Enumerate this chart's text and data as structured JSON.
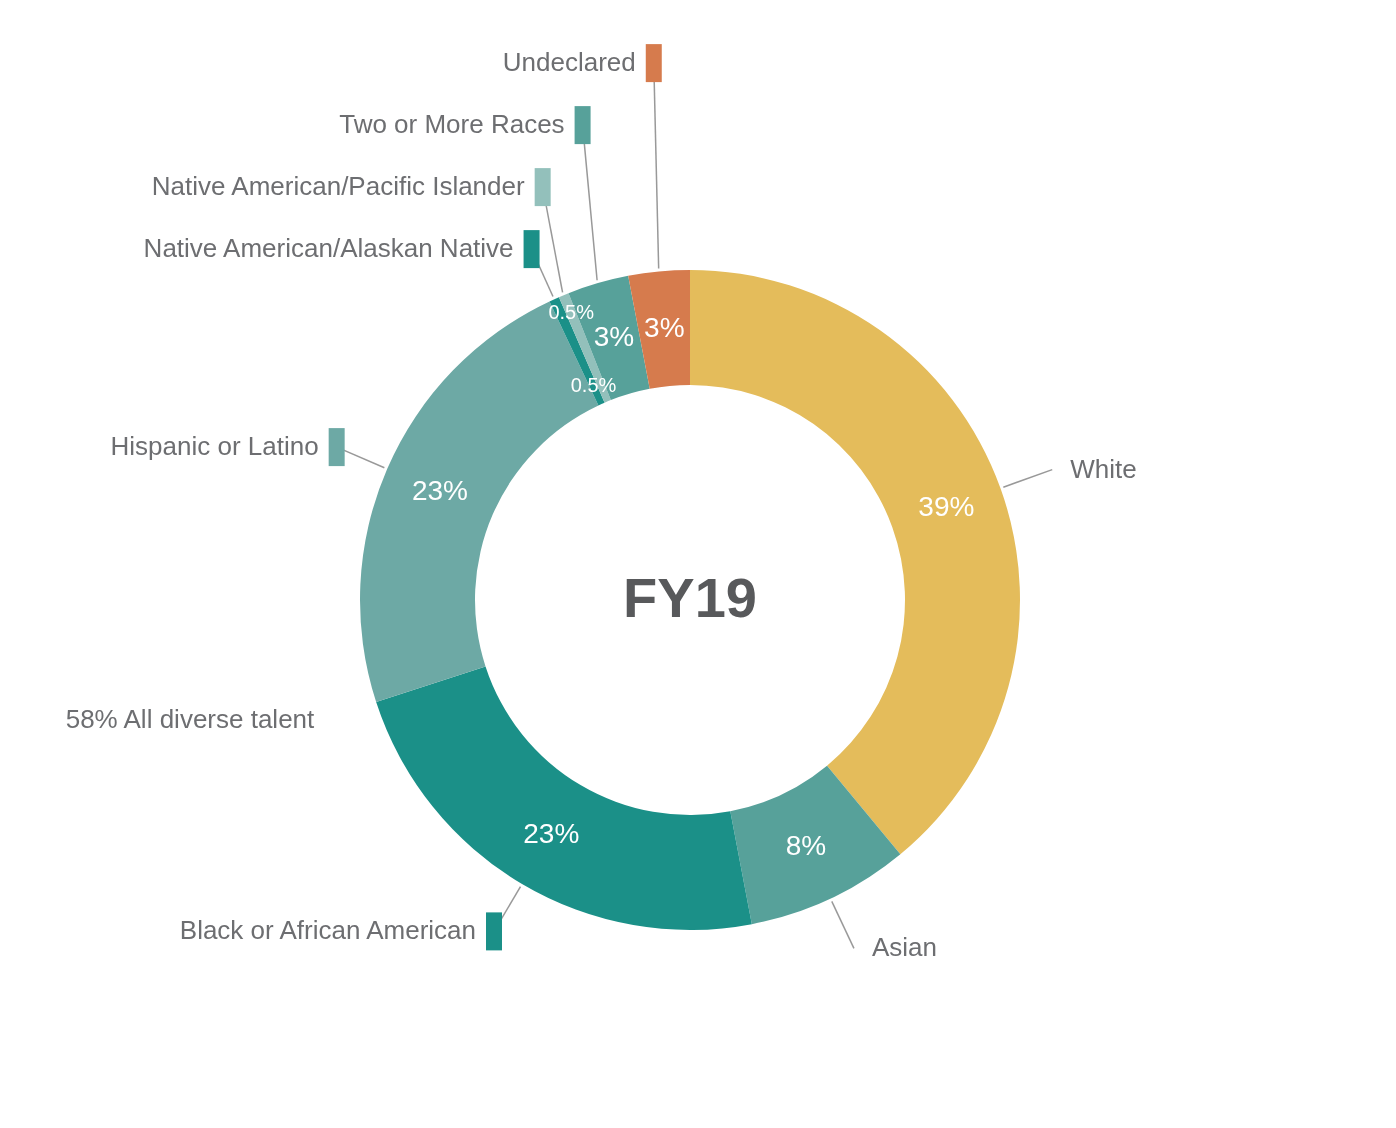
{
  "chart_data": {
    "type": "donut",
    "title": "FY19",
    "categories": [
      "White",
      "Asian",
      "Black or African American",
      "Hispanic or Latino",
      "Native American/Alaskan Native",
      "Native American/Pacific Islander",
      "Two or More Races",
      "Undeclared"
    ],
    "values": [
      39,
      8,
      23,
      23,
      0.5,
      0.5,
      3,
      3
    ],
    "value_labels": [
      "39%",
      "8%",
      "23%",
      "23%",
      "0.5%",
      "0.5%",
      "3%",
      "3%"
    ],
    "colors": [
      "#e4bc5b",
      "#57a19a",
      "#1b9088",
      "#6da9a5",
      "#1b9088",
      "#93c0bb",
      "#57a19a",
      "#d67b4d"
    ],
    "legend": "left",
    "annotations": [
      "58% All diverse talent"
    ]
  }
}
